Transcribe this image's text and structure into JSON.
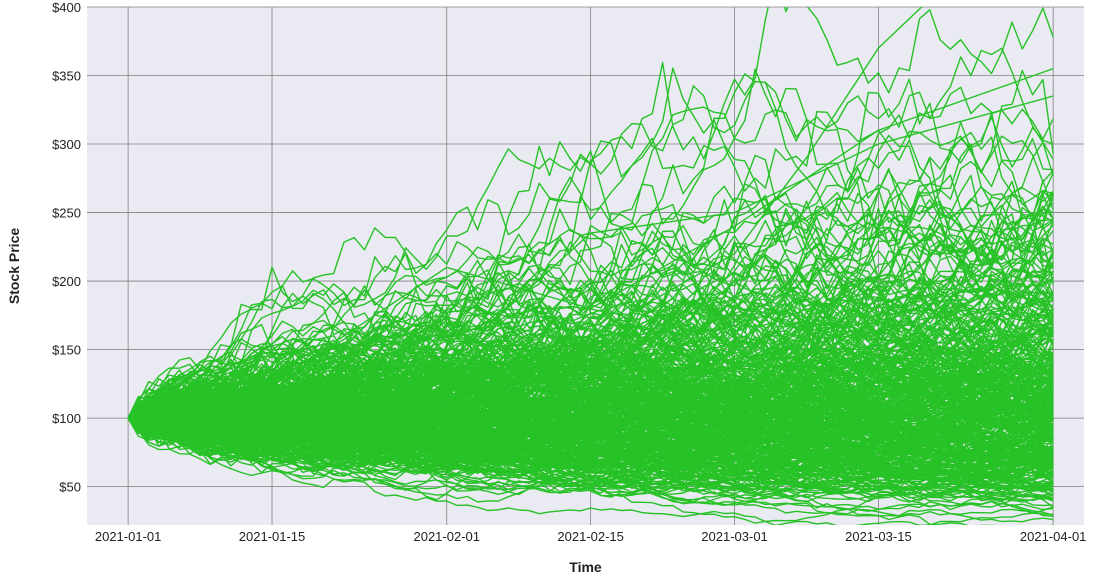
{
  "chart_data": {
    "type": "line",
    "title": "",
    "xlabel": "Time",
    "ylabel": "Stock Price",
    "x_range": [
      "2020-12-28",
      "2021-04-04"
    ],
    "ylim": [
      22,
      400
    ],
    "grid": true,
    "legend": "none",
    "x_ticks": [
      "2021-01-01",
      "2021-01-15",
      "2021-02-01",
      "2021-02-15",
      "2021-03-01",
      "2021-03-15",
      "2021-04-01"
    ],
    "y_ticks": [
      50,
      100,
      150,
      200,
      250,
      300,
      350,
      400
    ],
    "y_tick_labels": [
      "$50",
      "$100",
      "$150",
      "$200",
      "$250",
      "$300",
      "$350",
      "$400"
    ],
    "simulation": {
      "start_date": "2021-01-01",
      "end_date": "2021-04-01",
      "start_price": 100,
      "paths_shown": "many (hundreds)",
      "approx_range_at_end": [
        40,
        410
      ],
      "approx_central_band_at_end": [
        60,
        200
      ]
    },
    "series": [
      {
        "name": "",
        "x": [
          "2021-01-01",
          "2021-01-15",
          "2021-02-01",
          "2021-02-15",
          "2021-03-01",
          "2021-03-08",
          "2021-03-15",
          "2021-03-22",
          "2021-04-01"
        ],
        "values": [
          100,
          118,
          135,
          160,
          220,
          290,
          370,
          420,
          410
        ]
      },
      {
        "name": "",
        "x": [
          "2021-01-01",
          "2021-01-15",
          "2021-02-01",
          "2021-02-15",
          "2021-03-01",
          "2021-03-15",
          "2021-04-01"
        ],
        "values": [
          100,
          125,
          210,
          180,
          240,
          310,
          355
        ]
      },
      {
        "name": "",
        "x": [
          "2021-01-01",
          "2021-01-15",
          "2021-02-01",
          "2021-02-15",
          "2021-03-01",
          "2021-03-15",
          "2021-04-01"
        ],
        "values": [
          100,
          110,
          140,
          235,
          250,
          300,
          335
        ]
      },
      {
        "name": "",
        "x": [
          "2021-01-01",
          "2021-01-15",
          "2021-02-01",
          "2021-02-15",
          "2021-03-01",
          "2021-03-15",
          "2021-04-01"
        ],
        "values": [
          100,
          82,
          75,
          62,
          55,
          50,
          42
        ]
      },
      {
        "name": "",
        "x": [
          "2021-01-01",
          "2021-01-15",
          "2021-02-01",
          "2021-02-15",
          "2021-03-01",
          "2021-03-15",
          "2021-04-01"
        ],
        "values": [
          100,
          88,
          80,
          70,
          65,
          58,
          48
        ]
      }
    ]
  },
  "colors": {
    "line": "#27c227",
    "plot_background": "#eaeaf2",
    "grid": "#808080"
  }
}
